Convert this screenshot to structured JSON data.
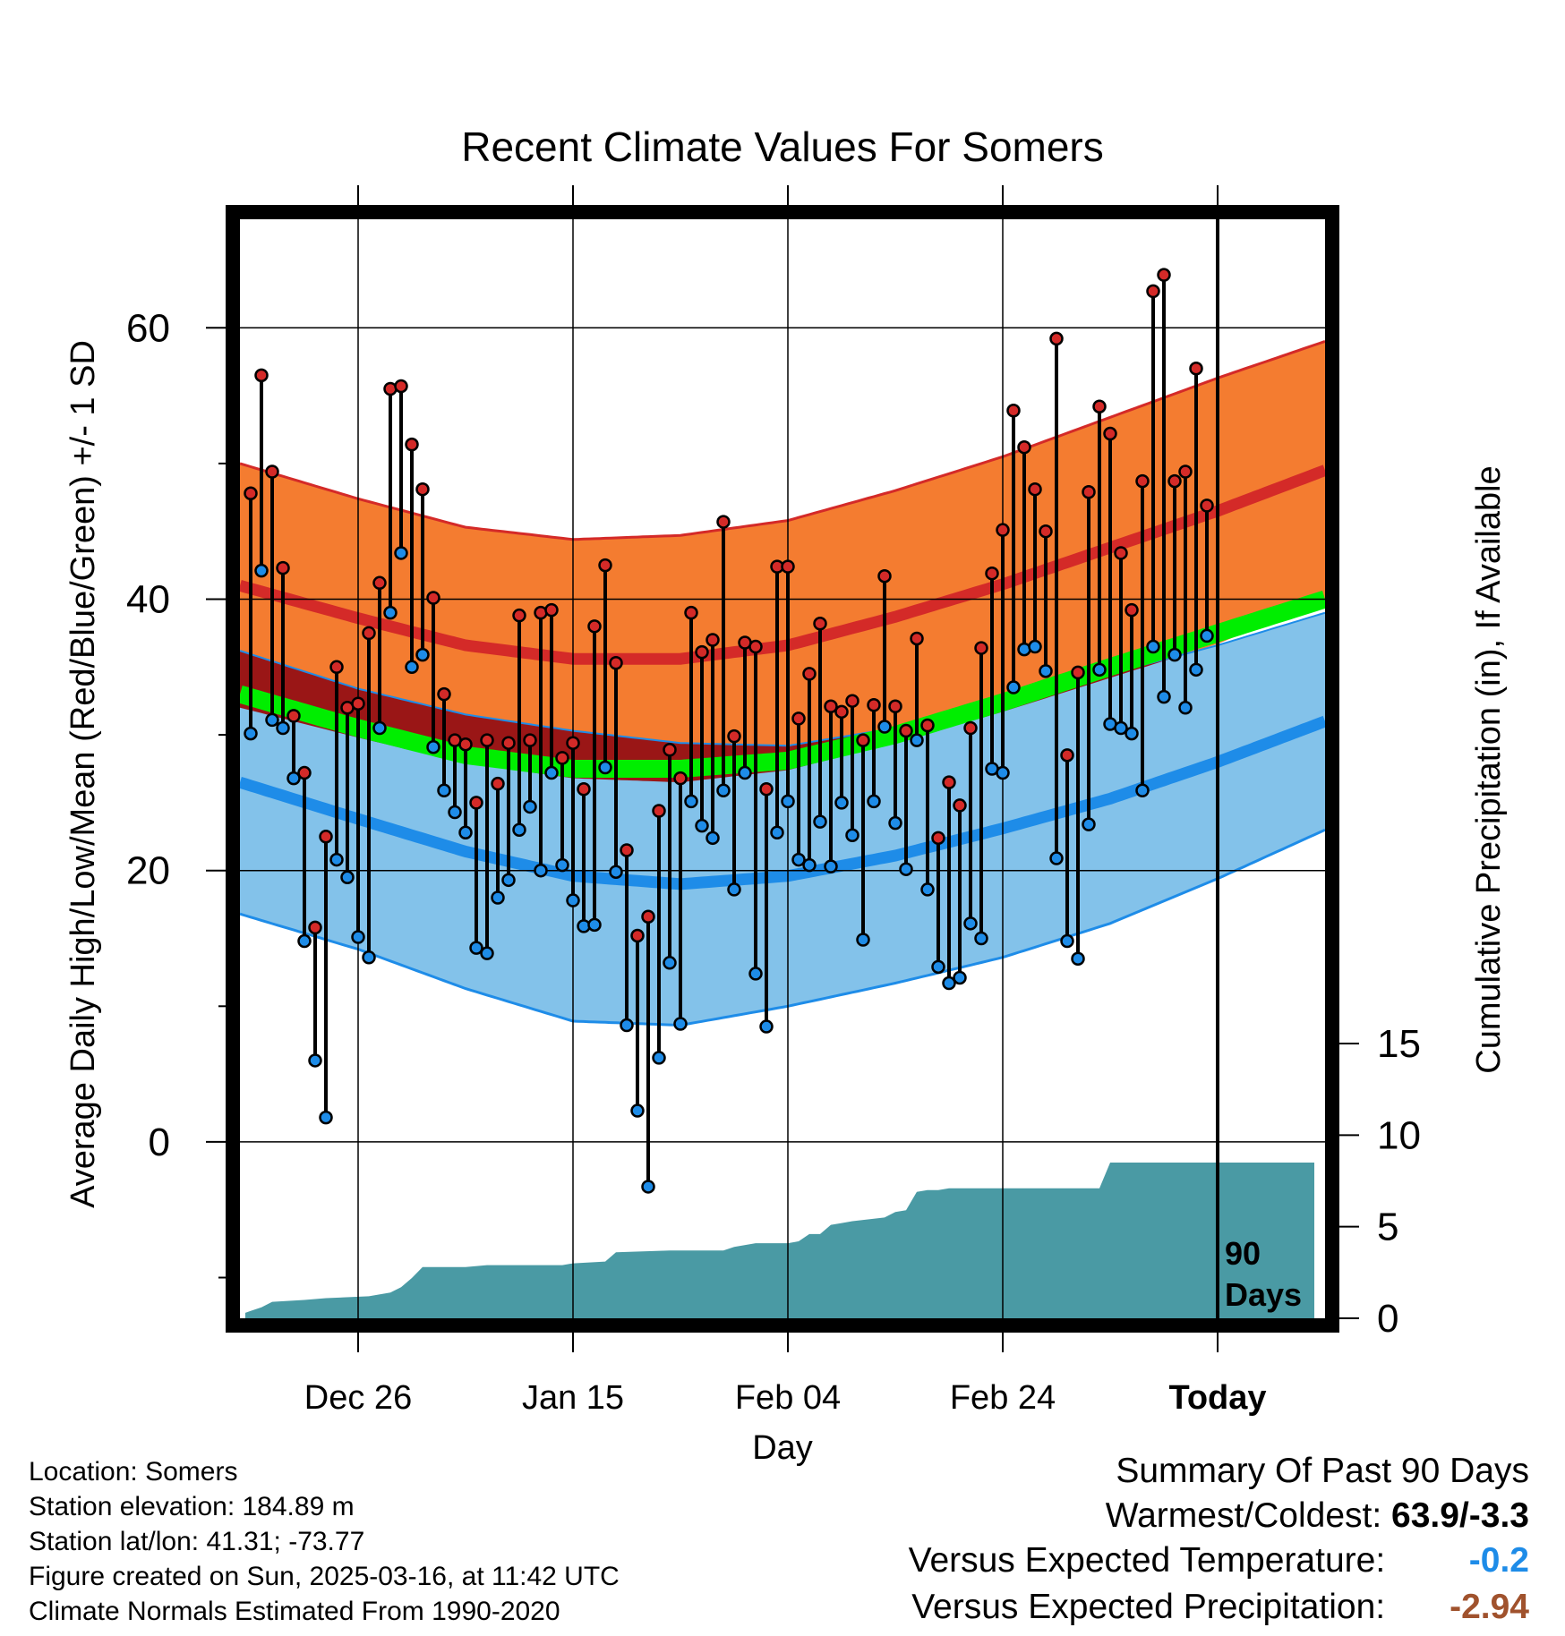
{
  "chart_data": {
    "type": "line",
    "title": "Recent Climate Values For Somers",
    "xlabel": "Day",
    "ylabel": "Average Daily High/Low/Mean (Red/Blue/Green) +/- 1 SD",
    "y2label": "Cumulative Precipitation (in), If Available",
    "x_day_range": [
      -91,
      10
    ],
    "ylim": [
      -13,
      68
    ],
    "y_ticks": [
      0,
      20,
      40,
      60
    ],
    "y2_range": [
      0,
      60
    ],
    "y2_ticks": [
      0,
      5,
      10,
      15
    ],
    "x_ticks": [
      {
        "day": -80,
        "label": "Dec 26"
      },
      {
        "day": -60,
        "label": "Jan 15"
      },
      {
        "day": -40,
        "label": "Feb 04"
      },
      {
        "day": -20,
        "label": "Feb 24"
      },
      {
        "day": 0,
        "label": "Today"
      }
    ],
    "today_label": [
      "90",
      "Days"
    ],
    "grid": true,
    "colors": {
      "high_band": "#f47c30",
      "high_line": "#d42a28",
      "low_band": "#83c2ea",
      "low_line": "#1e8ce8",
      "mean_band": "#9a1616",
      "mean_line": "#00ee00",
      "precip": "#4a9aa4",
      "high_marker": "#d42a28",
      "low_marker": "#1e8ce8"
    },
    "normals": {
      "days": [
        -91,
        -80,
        -70,
        -60,
        -50,
        -40,
        -30,
        -20,
        -10,
        0,
        10
      ],
      "high_mean": [
        41,
        38.6,
        36.6,
        35.6,
        35.6,
        36.6,
        38.7,
        41.1,
        43.8,
        46.5,
        49.5
      ],
      "high_sd": [
        9,
        8.8,
        8.7,
        8.8,
        9.1,
        9.2,
        9.3,
        9.4,
        9.6,
        9.8,
        9.5
      ],
      "low_mean": [
        26.5,
        23.8,
        21.4,
        19.6,
        19,
        19.6,
        21.1,
        23.1,
        25.3,
        28,
        31
      ],
      "low_sd": [
        9.7,
        9.6,
        10.1,
        10.7,
        10.4,
        9.6,
        9.4,
        9.5,
        9.2,
        8.6,
        8
      ],
      "mean_mean": [
        33,
        30.5,
        28.5,
        27.5,
        27.5,
        28.1,
        30,
        32.4,
        35,
        37.5,
        40
      ]
    },
    "series": [
      {
        "name": "High",
        "values": [
          47.8,
          56.5,
          49.4,
          42.3,
          31.4,
          27.2,
          15.8,
          22.5,
          35,
          32,
          32.3,
          37.5,
          41.2,
          55.5,
          55.7,
          51.4,
          48.1,
          40.1,
          33,
          29.6,
          29.3,
          25,
          29.6,
          26.4,
          29.4,
          38.8,
          29.6,
          39,
          39.2,
          28.3,
          29.4,
          26,
          38,
          42.5,
          35.3,
          21.5,
          15.2,
          16.6,
          24.4,
          28.9,
          26.8,
          39,
          36.1,
          37,
          45.7,
          29.9,
          36.8,
          36.5,
          26,
          42.4,
          42.4,
          31.2,
          34.5,
          38.2,
          32.1,
          31.7,
          32.5,
          29.6,
          32.2,
          41.7,
          32.1,
          30.3,
          37.1,
          30.7,
          22.4,
          26.5,
          24.8,
          30.5,
          36.4,
          41.9,
          45.1,
          53.9,
          51.2,
          48.1,
          45,
          59.2,
          28.5,
          34.6,
          47.9,
          54.2,
          52.2,
          43.4,
          39.2,
          48.7,
          62.7,
          63.9,
          48.7,
          49.4,
          57,
          46.9
        ]
      },
      {
        "name": "Low",
        "values": [
          30.1,
          42.1,
          31.1,
          30.5,
          26.8,
          14.8,
          6,
          1.8,
          20.8,
          19.5,
          15.1,
          13.6,
          30.5,
          39,
          43.4,
          35,
          35.9,
          29.1,
          25.9,
          24.3,
          22.8,
          14.3,
          13.9,
          18,
          19.3,
          23,
          24.7,
          20,
          27.2,
          20.4,
          17.8,
          15.9,
          16,
          27.6,
          19.9,
          8.6,
          2.3,
          -3.3,
          6.2,
          13.2,
          8.7,
          25.1,
          23.3,
          22.4,
          25.9,
          18.6,
          27.2,
          12.4,
          8.5,
          22.8,
          25.1,
          20.8,
          20.4,
          23.6,
          20.3,
          25,
          22.6,
          14.9,
          25.1,
          30.6,
          23.5,
          20.1,
          29.6,
          18.6,
          12.9,
          11.7,
          12.1,
          16.1,
          15,
          27.5,
          27.2,
          33.5,
          36.3,
          36.5,
          34.7,
          20.9,
          14.8,
          13.5,
          23.4,
          34.8,
          30.8,
          30.5,
          30.1,
          25.9,
          36.5,
          32.8,
          35.9,
          32,
          34.8,
          37.3
        ]
      }
    ],
    "precip_cumulative": {
      "days": [
        -90.5,
        -90,
        -89,
        -88,
        -85,
        -83,
        -79,
        -77,
        -76,
        -75,
        -74,
        -73,
        -70,
        -68,
        -61,
        -60,
        -57,
        -56,
        -51,
        -46,
        -45,
        -43,
        -40,
        -39,
        -38,
        -37,
        -36,
        -35,
        -34,
        -31,
        -30,
        -29,
        -28,
        -27,
        -26,
        -25,
        -21,
        -11,
        -10,
        -7,
        -5,
        0,
        9
      ],
      "values": [
        0.3,
        0.4,
        0.6,
        0.9,
        1,
        1.1,
        1.2,
        1.4,
        1.7,
        2.2,
        2.8,
        2.8,
        2.8,
        2.9,
        2.9,
        3,
        3.1,
        3.6,
        3.7,
        3.7,
        3.9,
        4.1,
        4.1,
        4.2,
        4.6,
        4.6,
        5.1,
        5.2,
        5.3,
        5.5,
        5.8,
        5.9,
        6.9,
        7,
        7,
        7.1,
        7.1,
        7.1,
        8.5,
        8.5,
        8.5,
        8.5,
        8.5
      ]
    }
  },
  "meta": {
    "location": "Location: Somers",
    "elevation": "Station elevation: 184.89 m",
    "latlon": "Station lat/lon: 41.31; -73.77",
    "created": "Figure created on Sun, 2025-03-16, at 11:42 UTC",
    "normals": "Climate Normals Estimated From 1990-2020"
  },
  "summary": {
    "heading": "Summary Of Past 90 Days",
    "warm_cold_label": "Warmest/Coldest:",
    "warm_cold_value": "63.9/-3.3",
    "temp_label": "Versus Expected Temperature:",
    "temp_value": "-0.2",
    "temp_color": "#1e8ce8",
    "precip_label": "Versus Expected Precipitation:",
    "precip_value": "-2.94",
    "precip_color": "#a0522d"
  }
}
